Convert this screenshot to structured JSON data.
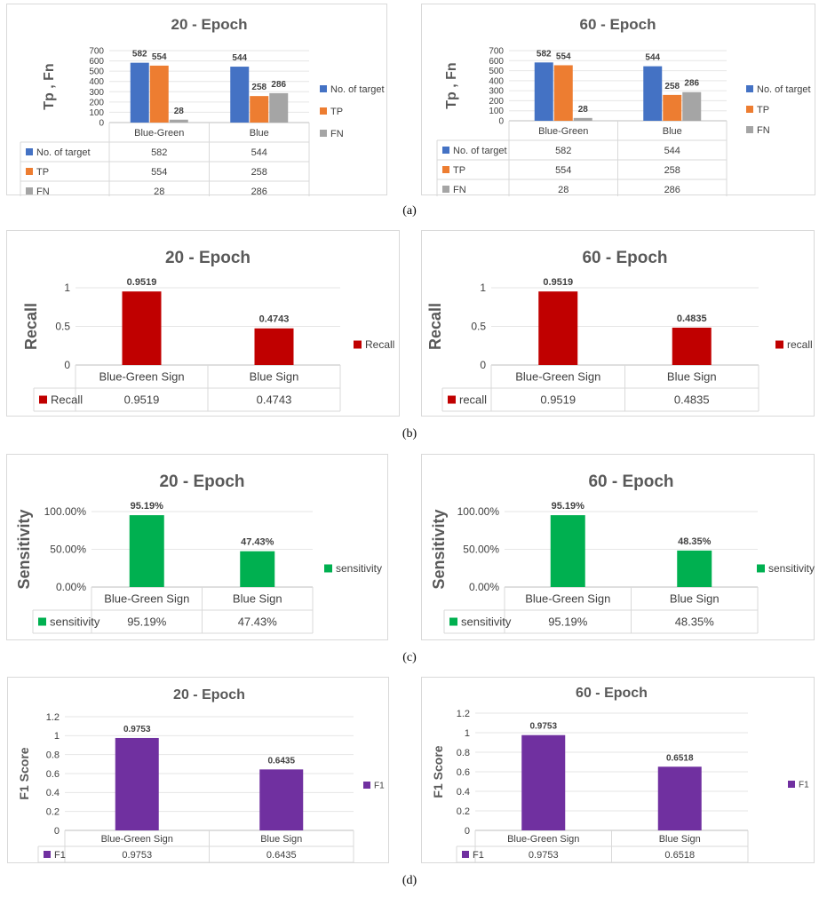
{
  "captions": [
    "(a)",
    "(b)",
    "(c)",
    "(d)"
  ],
  "chart_data": [
    {
      "type": "bar",
      "title": "20 - Epoch",
      "ylabel": "Tp , Fn",
      "xlabel": "",
      "categories": [
        "Blue-Green",
        "Blue"
      ],
      "series": [
        {
          "name": "No. of target",
          "values": [
            582,
            544
          ],
          "color": "#4472c4"
        },
        {
          "name": "TP",
          "values": [
            554,
            258
          ],
          "color": "#ed7d31"
        },
        {
          "name": "FN",
          "values": [
            28,
            286
          ],
          "color": "#a5a5a5"
        }
      ],
      "ylim": [
        0,
        700
      ],
      "yticks": [
        0,
        100,
        200,
        300,
        400,
        500,
        600,
        700
      ],
      "ytick_labels": [
        "0",
        "100",
        "200",
        "300",
        "400",
        "500",
        "600",
        "700"
      ],
      "data_labels": [
        [
          "582",
          "544"
        ],
        [
          "554",
          "258"
        ],
        [
          "28",
          "286"
        ]
      ],
      "grid": true,
      "legend": "right",
      "data_table": true
    },
    {
      "type": "bar",
      "title": "60 - Epoch",
      "ylabel": "Tp , Fn",
      "xlabel": "",
      "categories": [
        "Blue-Green",
        "Blue"
      ],
      "series": [
        {
          "name": "No. of target",
          "values": [
            582,
            544
          ],
          "color": "#4472c4"
        },
        {
          "name": "TP",
          "values": [
            554,
            258
          ],
          "color": "#ed7d31"
        },
        {
          "name": "FN",
          "values": [
            28,
            286
          ],
          "color": "#a5a5a5"
        }
      ],
      "ylim": [
        0,
        700
      ],
      "yticks": [
        0,
        100,
        200,
        300,
        400,
        500,
        600,
        700
      ],
      "ytick_labels": [
        "0",
        "100",
        "200",
        "300",
        "400",
        "500",
        "600",
        "700"
      ],
      "data_labels": [
        [
          "582",
          "544"
        ],
        [
          "554",
          "258"
        ],
        [
          "28",
          "286"
        ]
      ],
      "grid": true,
      "legend": "right",
      "data_table": true
    },
    {
      "type": "bar",
      "title": "20 - Epoch",
      "ylabel": "Recall",
      "xlabel": "",
      "categories": [
        "Blue-Green Sign",
        "Blue Sign"
      ],
      "series": [
        {
          "name": "Recall",
          "values": [
            0.9519,
            0.4743
          ],
          "color": "#c00000"
        }
      ],
      "ylim": [
        0,
        1
      ],
      "yticks": [
        0,
        0.5,
        1
      ],
      "ytick_labels": [
        "0",
        "0.5",
        "1"
      ],
      "data_labels": [
        [
          "0.9519",
          "0.4743"
        ]
      ],
      "grid": true,
      "legend": "right",
      "data_table": true
    },
    {
      "type": "bar",
      "title": "60 - Epoch",
      "ylabel": "Recall",
      "xlabel": "",
      "categories": [
        "Blue-Green Sign",
        "Blue Sign"
      ],
      "series": [
        {
          "name": "recall",
          "values": [
            0.9519,
            0.4835
          ],
          "color": "#c00000"
        }
      ],
      "ylim": [
        0,
        1
      ],
      "yticks": [
        0,
        0.5,
        1
      ],
      "ytick_labels": [
        "0",
        "0.5",
        "1"
      ],
      "data_labels": [
        [
          "0.9519",
          "0.4835"
        ]
      ],
      "grid": true,
      "legend": "right",
      "data_table": true
    },
    {
      "type": "bar",
      "title": "20 - Epoch",
      "ylabel": "Sensitivity",
      "xlabel": "",
      "categories": [
        "Blue-Green Sign",
        "Blue Sign"
      ],
      "series": [
        {
          "name": "sensitivity",
          "values": [
            0.9519,
            0.4743
          ],
          "color": "#00b050"
        }
      ],
      "ylim": [
        0,
        1
      ],
      "yticks": [
        0,
        0.5,
        1
      ],
      "ytick_labels": [
        "0.00%",
        "50.00%",
        "100.00%"
      ],
      "data_labels": [
        [
          "95.19%",
          "47.43%"
        ]
      ],
      "grid": true,
      "legend": "right",
      "data_table": true
    },
    {
      "type": "bar",
      "title": "60 - Epoch",
      "ylabel": "Sensitivity",
      "xlabel": "",
      "categories": [
        "Blue-Green Sign",
        "Blue Sign"
      ],
      "series": [
        {
          "name": "sensitivity",
          "values": [
            0.9519,
            0.4835
          ],
          "color": "#00b050"
        }
      ],
      "ylim": [
        0,
        1
      ],
      "yticks": [
        0,
        0.5,
        1
      ],
      "ytick_labels": [
        "0.00%",
        "50.00%",
        "100.00%"
      ],
      "data_labels": [
        [
          "95.19%",
          "48.35%"
        ]
      ],
      "grid": true,
      "legend": "right",
      "data_table": true
    },
    {
      "type": "bar",
      "title": "20 - Epoch",
      "ylabel": "F1 Score",
      "xlabel": "",
      "categories": [
        "Blue-Green Sign",
        "Blue Sign"
      ],
      "series": [
        {
          "name": "F1",
          "values": [
            0.9753,
            0.6435
          ],
          "color": "#7030a0"
        }
      ],
      "ylim": [
        0,
        1.2
      ],
      "yticks": [
        0,
        0.2,
        0.4,
        0.6,
        0.8,
        1,
        1.2
      ],
      "ytick_labels": [
        "0",
        "0.2",
        "0.4",
        "0.6",
        "0.8",
        "1",
        "1.2"
      ],
      "data_labels": [
        [
          "0.9753",
          "0.6435"
        ]
      ],
      "grid": true,
      "legend": "right",
      "data_table": true
    },
    {
      "type": "bar",
      "title": "60 - Epoch",
      "ylabel": "F1 Score",
      "xlabel": "",
      "categories": [
        "Blue-Green Sign",
        "Blue Sign"
      ],
      "series": [
        {
          "name": "F1",
          "values": [
            0.9753,
            0.6518
          ],
          "color": "#7030a0"
        }
      ],
      "ylim": [
        0,
        1.2
      ],
      "yticks": [
        0,
        0.2,
        0.4,
        0.6,
        0.8,
        1,
        1.2
      ],
      "ytick_labels": [
        "0",
        "0.2",
        "0.4",
        "0.6",
        "0.8",
        "1",
        "1.2"
      ],
      "data_labels": [
        [
          "0.9753",
          "0.6518"
        ]
      ],
      "grid": true,
      "legend": "right",
      "data_table": true
    }
  ]
}
